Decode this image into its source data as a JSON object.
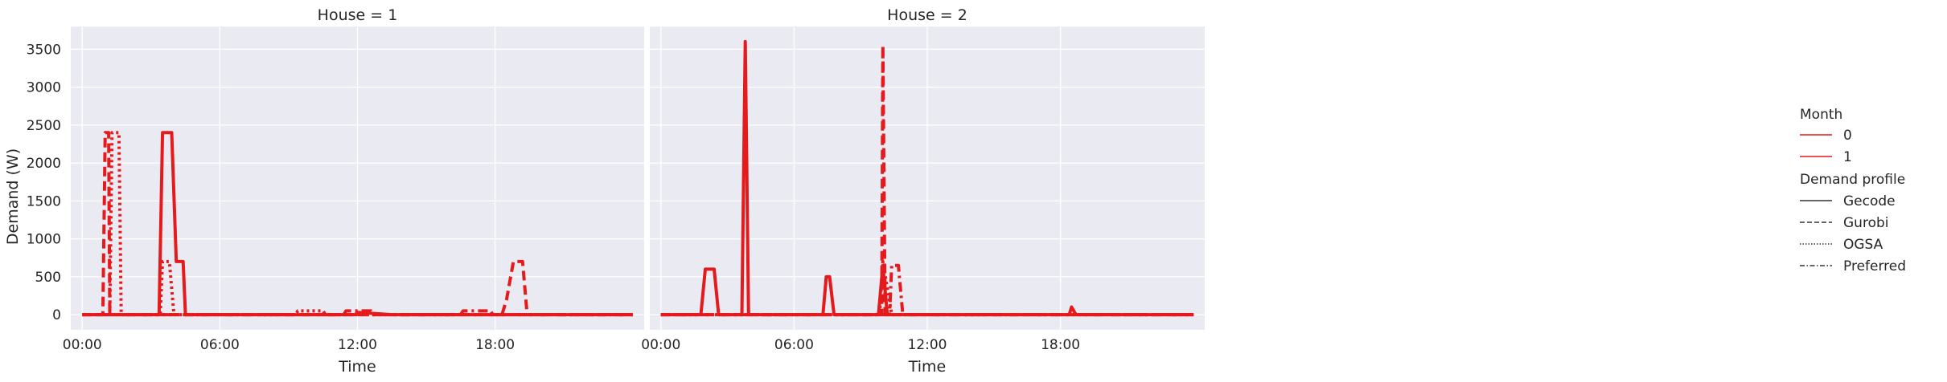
{
  "chart_data": {
    "type": "line",
    "ylabel": "Demand (W)",
    "xlabel": "Time",
    "ylim": [
      -200,
      3800
    ],
    "xlim": [
      -0.5,
      24.5
    ],
    "yticks": [
      0,
      500,
      1000,
      1500,
      2000,
      2500,
      3000,
      3500
    ],
    "xticks": [
      {
        "value": 0,
        "label": "00:00"
      },
      {
        "value": 6,
        "label": "06:00"
      },
      {
        "value": 12,
        "label": "12:00"
      },
      {
        "value": 18,
        "label": "18:00"
      }
    ],
    "grid": true,
    "legend_placement": "right",
    "colors": {
      "month_0": "#e41a1c",
      "month_1": "#e41a1c",
      "background": "#eaeaf2",
      "grid": "#ffffff"
    },
    "panels": [
      {
        "title": "House = 1",
        "series": [
          {
            "month": "1",
            "profile": "Gecode",
            "x": [
              0,
              3.35,
              3.5,
              3.9,
              4.1,
              4.4,
              4.5,
              11.9,
              12.0,
              13.5,
              24
            ],
            "y": [
              0,
              0,
              2400,
              2400,
              700,
              700,
              0,
              0,
              30,
              0,
              0
            ]
          },
          {
            "month": "1",
            "profile": "Gurobi",
            "x": [
              0,
              0.9,
              1.0,
              1.15,
              1.2,
              17.5,
              17.6,
              18.3,
              18.5,
              18.8,
              19.2,
              19.4,
              24
            ],
            "y": [
              0,
              0,
              2400,
              2400,
              0,
              0,
              0,
              0,
              200,
              700,
              700,
              0,
              0
            ]
          },
          {
            "month": "1",
            "profile": "OGSA",
            "x": [
              0,
              1.2,
              1.3,
              1.6,
              1.7,
              3.4,
              3.5,
              3.8,
              4.0,
              9.3,
              9.4,
              10.5,
              10.6,
              24
            ],
            "y": [
              0,
              0,
              2400,
              2400,
              0,
              0,
              700,
              700,
              0,
              0,
              50,
              50,
              0,
              0
            ]
          },
          {
            "month": "1",
            "profile": "Preferred",
            "x": [
              0,
              11.4,
              11.5,
              12.6,
              12.7,
              16.5,
              16.6,
              17.8,
              17.9,
              24
            ],
            "y": [
              0,
              0,
              50,
              50,
              0,
              0,
              50,
              50,
              0,
              0
            ]
          }
        ]
      },
      {
        "title": "House = 2",
        "series": [
          {
            "month": "1",
            "profile": "Gecode",
            "x": [
              0,
              1.8,
              2.0,
              2.4,
              2.6,
              3.65,
              3.8,
              3.95,
              7.3,
              7.45,
              7.6,
              7.8,
              9.8,
              10.0,
              10.2,
              18.4,
              18.5,
              18.7,
              24
            ],
            "y": [
              0,
              0,
              600,
              600,
              0,
              0,
              3600,
              0,
              0,
              500,
              500,
              0,
              0,
              650,
              0,
              0,
              100,
              0,
              0
            ]
          },
          {
            "month": "1",
            "profile": "Gurobi",
            "x": [
              0,
              9.95,
              10.0,
              10.1,
              24
            ],
            "y": [
              0,
              0,
              3550,
              0,
              0
            ]
          },
          {
            "month": "1",
            "profile": "OGSA",
            "x": [
              0,
              9.85,
              10.0,
              10.4,
              24
            ],
            "y": [
              0,
              0,
              700,
              0,
              0
            ]
          },
          {
            "month": "1",
            "profile": "Preferred",
            "x": [
              0,
              10.3,
              10.4,
              10.7,
              10.9,
              24
            ],
            "y": [
              0,
              0,
              650,
              650,
              0,
              0
            ]
          }
        ]
      }
    ]
  },
  "legend": {
    "hue_title": "Month",
    "hue_items": [
      {
        "label": "0",
        "color": "#e41a1c"
      },
      {
        "label": "1",
        "color": "#e41a1c"
      }
    ],
    "style_title": "Demand profile",
    "style_items": [
      {
        "label": "Gecode",
        "dash": "solid"
      },
      {
        "label": "Gurobi",
        "dash": "dashed"
      },
      {
        "label": "OGSA",
        "dash": "dotted"
      },
      {
        "label": "Preferred",
        "dash": "dashdot"
      }
    ]
  }
}
